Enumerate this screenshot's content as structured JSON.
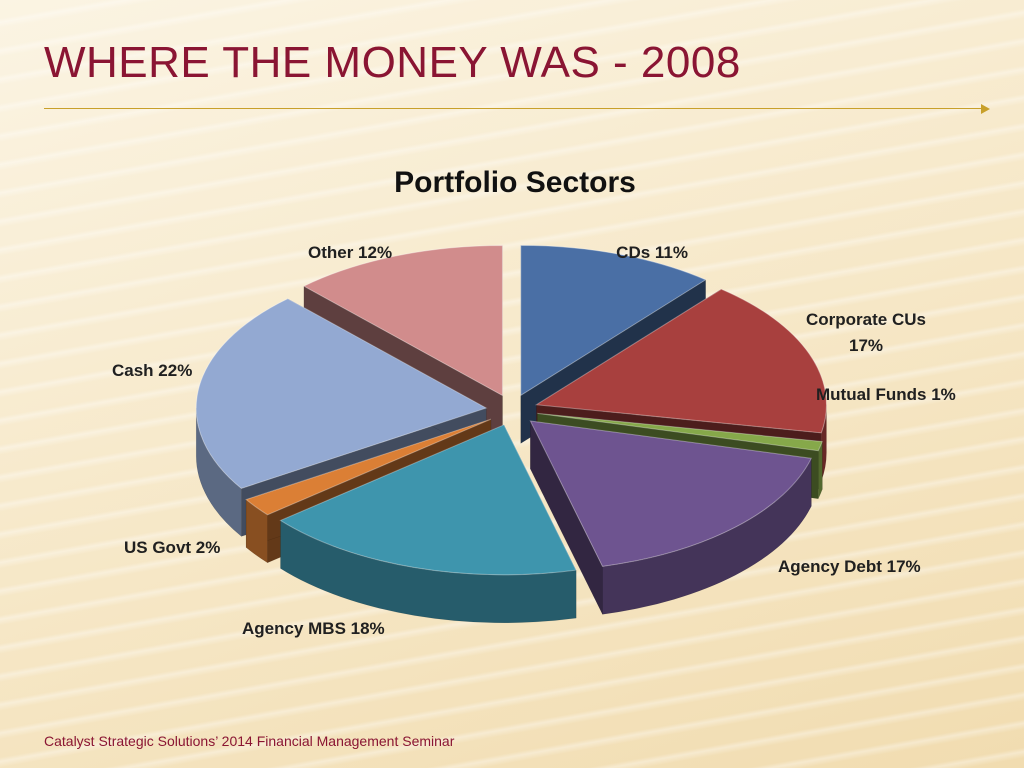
{
  "slide": {
    "title": "WHERE THE MONEY WAS - 2008",
    "footer": "Catalyst Strategic Solutions’ 2014 Financial Management Seminar"
  },
  "chart_data": {
    "type": "pie",
    "title": "Portfolio Sectors",
    "legend": "none",
    "exploded": true,
    "style": "3d",
    "slices": [
      {
        "name": "CDs",
        "value": 11,
        "label": "CDs 11%",
        "color": "#4a6fa5"
      },
      {
        "name": "Corporate CUs",
        "value": 17,
        "label_lines": [
          "Corporate CUs",
          "17%"
        ],
        "color": "#a8403e"
      },
      {
        "name": "Mutual Funds",
        "value": 1,
        "label": "Mutual Funds 1%",
        "color": "#86a84a"
      },
      {
        "name": "Agency Debt",
        "value": 17,
        "label": "Agency Debt 17%",
        "color": "#6e5490"
      },
      {
        "name": "Agency MBS",
        "value": 18,
        "label": "Agency MBS 18%",
        "color": "#3e95ad"
      },
      {
        "name": "US Govt",
        "value": 2,
        "label": "US Govt 2%",
        "color": "#db7f35"
      },
      {
        "name": "Cash",
        "value": 22,
        "label": "Cash 22%",
        "color": "#93a9d2"
      },
      {
        "name": "Other",
        "value": 12,
        "label": "Other 12%",
        "color": "#d18c8c"
      }
    ]
  }
}
